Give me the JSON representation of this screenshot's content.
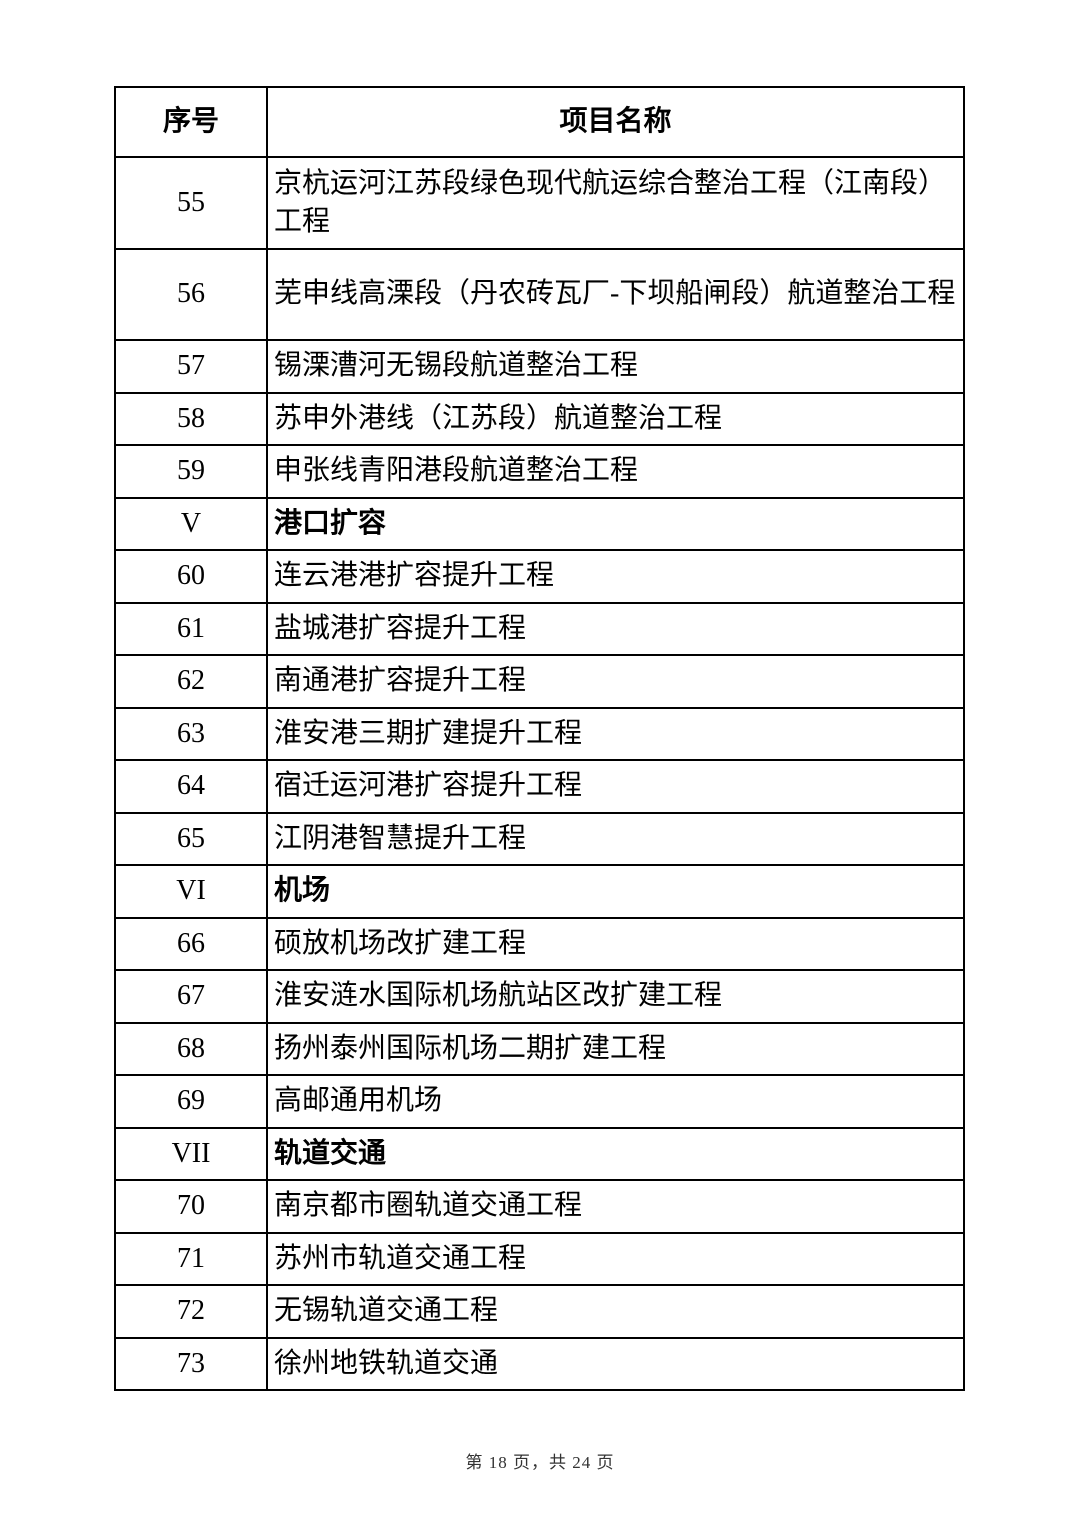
{
  "table": {
    "headers": [
      "序号",
      "项目名称"
    ],
    "rows": [
      {
        "no": "55",
        "name": "京杭运河江苏段绿色现代航运综合整治工程（江南段）工程",
        "type": "item"
      },
      {
        "no": "56",
        "name": "芜申线高溧段（丹农砖瓦厂-下坝船闸段）航道整治工程",
        "type": "item"
      },
      {
        "no": "57",
        "name": "锡溧漕河无锡段航道整治工程",
        "type": "item"
      },
      {
        "no": "58",
        "name": "苏申外港线（江苏段）航道整治工程",
        "type": "item"
      },
      {
        "no": "59",
        "name": "申张线青阳港段航道整治工程",
        "type": "item"
      },
      {
        "no": "V",
        "name": "港口扩容",
        "type": "category"
      },
      {
        "no": "60",
        "name": "连云港港扩容提升工程",
        "type": "item"
      },
      {
        "no": "61",
        "name": "盐城港扩容提升工程",
        "type": "item"
      },
      {
        "no": "62",
        "name": "南通港扩容提升工程",
        "type": "item"
      },
      {
        "no": "63",
        "name": "淮安港三期扩建提升工程",
        "type": "item"
      },
      {
        "no": "64",
        "name": "宿迁运河港扩容提升工程",
        "type": "item"
      },
      {
        "no": "65",
        "name": "江阴港智慧提升工程",
        "type": "item"
      },
      {
        "no": "VI",
        "name": "机场",
        "type": "category"
      },
      {
        "no": "66",
        "name": "硕放机场改扩建工程",
        "type": "item"
      },
      {
        "no": "67",
        "name": "淮安涟水国际机场航站区改扩建工程",
        "type": "item"
      },
      {
        "no": "68",
        "name": "扬州泰州国际机场二期扩建工程",
        "type": "item"
      },
      {
        "no": "69",
        "name": "高邮通用机场",
        "type": "item"
      },
      {
        "no": "VII",
        "name": "轨道交通",
        "type": "category"
      },
      {
        "no": "70",
        "name": "南京都市圈轨道交通工程",
        "type": "item"
      },
      {
        "no": "71",
        "name": "苏州市轨道交通工程",
        "type": "item"
      },
      {
        "no": "72",
        "name": "无锡轨道交通工程",
        "type": "item"
      },
      {
        "no": "73",
        "name": "徐州地铁轨道交通",
        "type": "item"
      }
    ]
  },
  "footer": {
    "page_label": "第 18 页，共 24 页"
  }
}
